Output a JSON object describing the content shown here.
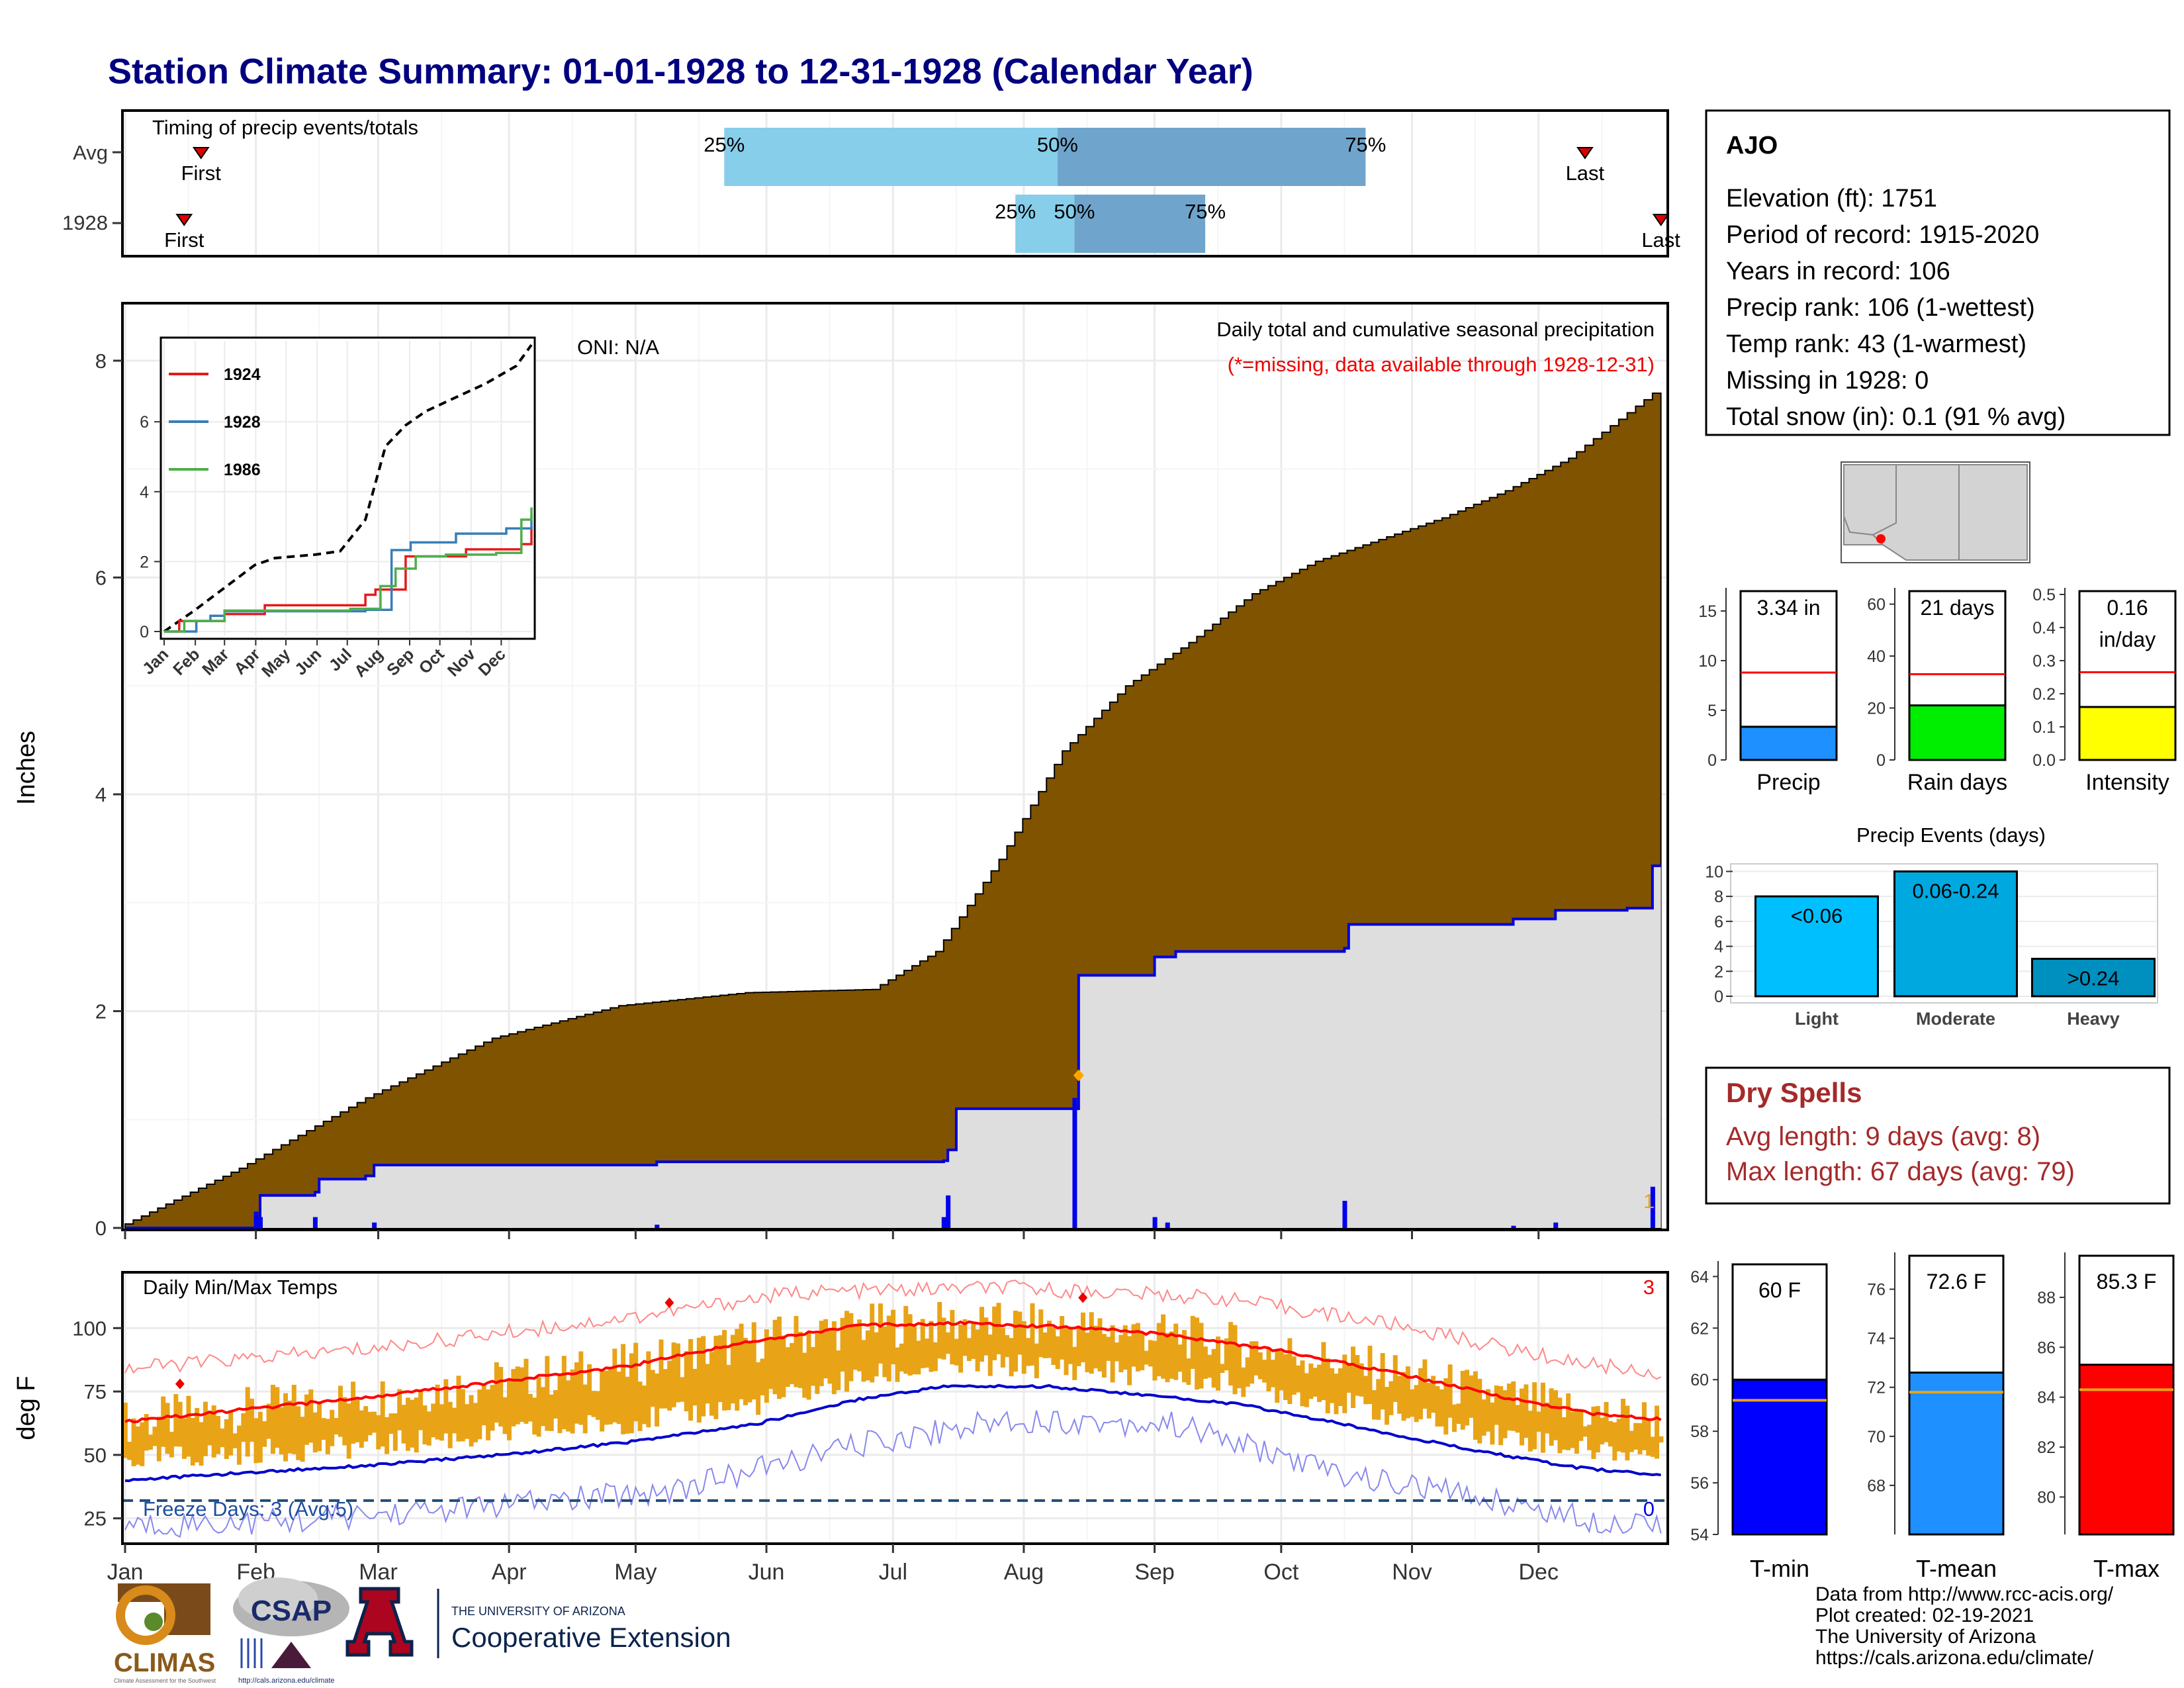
{
  "title": "Station Climate Summary: 01-01-1928 to 12-31-1928 (Calendar Year)",
  "months": [
    "Jan",
    "Feb",
    "Mar",
    "Apr",
    "May",
    "Jun",
    "Jul",
    "Aug",
    "Sep",
    "Oct",
    "Nov",
    "Dec"
  ],
  "timing": {
    "title": "Timing of precip events/totals",
    "rows": [
      "Avg",
      "1928"
    ],
    "first_label": "First",
    "last_label": "Last",
    "avg": {
      "first_doy": 19,
      "q25_doy": 143,
      "q50_doy": 222,
      "q75_doy": 295,
      "last_doy": 347
    },
    "year": {
      "first_doy": 15,
      "q25_doy": 212,
      "q50_doy": 226,
      "q75_doy": 257,
      "last_doy": 365
    },
    "labels": {
      "q25": "25%",
      "q50": "50%",
      "q75": "75%"
    },
    "colors": {
      "light": "#87ceeb",
      "dark": "#6fa5cc",
      "marker": "#dd0000"
    }
  },
  "precip_panel": {
    "ylabel": "Inches",
    "yticks": [
      "0",
      "2",
      "4",
      "6",
      "8"
    ],
    "title": "Daily total and cumulative seasonal precipitation",
    "missing_note": "(*=missing, data available through 1928-12-31)",
    "oni": "ONI: N/A",
    "missing_count": "1",
    "colors": {
      "avg_fill": "#805300",
      "year_fill": "#dedede",
      "year_line": "#0000dd",
      "daily_bar": "#0000ee"
    }
  },
  "inset": {
    "series": [
      "1924",
      "1928",
      "1986"
    ],
    "series_colors": [
      "#e41a1c",
      "#377eb8",
      "#4daf4a"
    ],
    "yticks": [
      "0",
      "2",
      "4",
      "6"
    ],
    "months": [
      "Jan",
      "Feb",
      "Mar",
      "Apr",
      "May",
      "Jun",
      "Jul",
      "Aug",
      "Sep",
      "Oct",
      "Nov",
      "Dec"
    ]
  },
  "temp_panel": {
    "ylabel": "deg F",
    "title": "Daily Min/Max Temps",
    "yticks": [
      "25",
      "50",
      "75",
      "100"
    ],
    "freeze_label": "Freeze Days: 3 (Avg:5)",
    "max_record_count": "3",
    "min_record_count": "0",
    "colors": {
      "range": "#e8a317",
      "max_avg": "#ff0000",
      "min_avg": "#0000cc",
      "max_record": "#ff8888",
      "min_record": "#8888ee",
      "freeze": "#1f4e79"
    }
  },
  "station": {
    "name": "AJO",
    "lines": [
      "Elevation (ft): 1751",
      "Period of record: 1915-2020",
      "Years in record: 106",
      "Precip rank: 106 (1-wettest)",
      "Temp rank: 43 (1-warmest)",
      "Missing in 1928: 0",
      "Total snow (in): 0.1 (91 % avg)"
    ]
  },
  "small_bars": {
    "precip": {
      "label": "Precip",
      "value_text": "3.34 in",
      "value": 3.34,
      "avg": 8.8,
      "max": 17,
      "yticks": [
        "0",
        "5",
        "10",
        "15"
      ],
      "color": "#1e90ff"
    },
    "rain_days": {
      "label": "Rain days",
      "value_text": "21 days",
      "value": 21,
      "avg": 33,
      "max": 65,
      "yticks": [
        "0",
        "20",
        "40",
        "60"
      ],
      "color": "#00ee00"
    },
    "intensity": {
      "label": "Intensity",
      "value_text": "0.16",
      "value_text2": "in/day",
      "value": 0.16,
      "avg": 0.265,
      "max": 0.51,
      "yticks": [
        "0.0",
        "0.1",
        "0.2",
        "0.3",
        "0.4",
        "0.5"
      ],
      "color": "#ffff00"
    }
  },
  "events": {
    "title": "Precip Events (days)",
    "categories": [
      "Light",
      "Moderate",
      "Heavy"
    ],
    "bar_labels": [
      "<0.06",
      "0.06-0.24",
      ">0.24"
    ],
    "values": [
      8,
      10,
      3
    ],
    "yticks": [
      "0",
      "2",
      "4",
      "6",
      "8",
      "10"
    ],
    "colors": [
      "#00bfff",
      "#00a8e0",
      "#0090c0"
    ]
  },
  "dry_spells": {
    "title": "Dry Spells",
    "avg_line": "Avg length: 9 days (avg: 8)",
    "max_line": "Max length: 67 days (avg: 79)",
    "color": "#a52a2a"
  },
  "temp_bars": {
    "tmin": {
      "label": "T-min",
      "value_text": "60 F",
      "value": 60,
      "avg": 59.2,
      "ymin": 54,
      "ymax": 64.6,
      "yticks": [
        "54",
        "56",
        "58",
        "60",
        "62",
        "64"
      ],
      "color": "#0000ff"
    },
    "tmean": {
      "label": "T-mean",
      "value_text": "72.6 F",
      "value": 72.6,
      "avg": 71.8,
      "ymin": 66,
      "ymax": 77.5,
      "yticks": [
        "68",
        "70",
        "72",
        "74",
        "76"
      ],
      "color": "#1e90ff"
    },
    "tmax": {
      "label": "T-max",
      "value_text": "85.3 F",
      "value": 85.3,
      "avg": 84.3,
      "ymin": 78.5,
      "ymax": 89.8,
      "yticks": [
        "80",
        "82",
        "84",
        "86",
        "88"
      ],
      "color": "#ff0000"
    }
  },
  "footer": {
    "credits": [
      "Data from http://www.rcc-acis.org/",
      "Plot created: 02-19-2021",
      "The University of Arizona",
      "https://cals.arizona.edu/climate/"
    ],
    "logo_climas": "CLIMAS",
    "logo_climas_sub": "Climate Assessment for the Southwest",
    "logo_csap": "CSAP",
    "logo_csap_url": "http://cals.arizona.edu/climate",
    "logo_ua_small": "THE UNIVERSITY OF ARIZONA",
    "logo_ua_big": "Cooperative Extension"
  },
  "chart_data": [
    {
      "type": "area",
      "title": "Daily total and cumulative seasonal precipitation",
      "ylabel": "Inches",
      "ylim": [
        0,
        8.5
      ],
      "x_unit": "day of year",
      "series": [
        {
          "name": "avg cumulative",
          "points": [
            [
              1,
              0
            ],
            [
              30,
              0.55
            ],
            [
              60,
              1.2
            ],
            [
              90,
              1.75
            ],
            [
              120,
              2.05
            ],
            [
              150,
              2.17
            ],
            [
              180,
              2.2
            ],
            [
              195,
              2.55
            ],
            [
              210,
              3.4
            ],
            [
              225,
              4.4
            ],
            [
              240,
              5.0
            ],
            [
              255,
              5.4
            ],
            [
              270,
              5.85
            ],
            [
              285,
              6.15
            ],
            [
              300,
              6.35
            ],
            [
              315,
              6.55
            ],
            [
              330,
              6.8
            ],
            [
              345,
              7.1
            ],
            [
              365,
              7.7
            ]
          ]
        },
        {
          "name": "1928 cumulative",
          "points": [
            [
              1,
              0
            ],
            [
              32,
              0.0
            ],
            [
              33,
              0.3
            ],
            [
              46,
              0.33
            ],
            [
              47,
              0.45
            ],
            [
              58,
              0.48
            ],
            [
              60,
              0.58
            ],
            [
              90,
              0.58
            ],
            [
              127,
              0.61
            ],
            [
              195,
              0.62
            ],
            [
              196,
              0.72
            ],
            [
              198,
              1.1
            ],
            [
              226,
              1.1
            ],
            [
              227,
              2.33
            ],
            [
              245,
              2.5
            ],
            [
              250,
              2.55
            ],
            [
              290,
              2.58
            ],
            [
              291,
              2.8
            ],
            [
              330,
              2.85
            ],
            [
              340,
              2.93
            ],
            [
              357,
              2.95
            ],
            [
              363,
              3.34
            ],
            [
              365,
              3.34
            ]
          ]
        },
        {
          "name": "1928 daily",
          "points": [
            [
              32,
              0.15
            ],
            [
              33,
              0.1
            ],
            [
              46,
              0.1
            ],
            [
              60,
              0.05
            ],
            [
              127,
              0.03
            ],
            [
              195,
              0.1
            ],
            [
              196,
              0.3
            ],
            [
              226,
              1.2
            ],
            [
              245,
              0.1
            ],
            [
              248,
              0.05
            ],
            [
              290,
              0.25
            ],
            [
              330,
              0.02
            ],
            [
              340,
              0.05
            ],
            [
              363,
              0.38
            ]
          ]
        }
      ]
    },
    {
      "type": "line",
      "title": "inset",
      "ylim": [
        0,
        8.2
      ],
      "series": [
        {
          "name": "avg",
          "points": [
            [
              0,
              0
            ],
            [
              30,
              0.6
            ],
            [
              60,
              1.25
            ],
            [
              90,
              1.9
            ],
            [
              110,
              2.1
            ],
            [
              150,
              2.2
            ],
            [
              175,
              2.3
            ],
            [
              200,
              3.2
            ],
            [
              220,
              5.3
            ],
            [
              240,
              5.9
            ],
            [
              260,
              6.3
            ],
            [
              290,
              6.7
            ],
            [
              320,
              7.1
            ],
            [
              350,
              7.6
            ],
            [
              365,
              8.2
            ]
          ]
        },
        {
          "name": "1924",
          "points": [
            [
              0,
              0
            ],
            [
              15,
              0.3
            ],
            [
              60,
              0.5
            ],
            [
              100,
              0.75
            ],
            [
              200,
              1.05
            ],
            [
              210,
              1.2
            ],
            [
              240,
              2.15
            ],
            [
              300,
              2.35
            ],
            [
              355,
              2.5
            ],
            [
              365,
              3.0
            ]
          ]
        },
        {
          "name": "1928",
          "points": [
            [
              0,
              0
            ],
            [
              32,
              0.3
            ],
            [
              46,
              0.45
            ],
            [
              60,
              0.58
            ],
            [
              200,
              0.62
            ],
            [
              226,
              2.33
            ],
            [
              245,
              2.55
            ],
            [
              290,
              2.8
            ],
            [
              340,
              2.95
            ],
            [
              365,
              3.34
            ]
          ]
        },
        {
          "name": "1986",
          "points": [
            [
              0,
              0
            ],
            [
              20,
              0.3
            ],
            [
              60,
              0.6
            ],
            [
              150,
              0.6
            ],
            [
              185,
              0.65
            ],
            [
              215,
              1.3
            ],
            [
              230,
              1.8
            ],
            [
              250,
              2.15
            ],
            [
              280,
              2.2
            ],
            [
              330,
              2.25
            ],
            [
              355,
              3.2
            ],
            [
              365,
              3.55
            ]
          ]
        }
      ]
    },
    {
      "type": "line",
      "title": "Daily Min/Max Temps",
      "ylim": [
        15,
        122
      ],
      "series": [
        {
          "name": "max avg",
          "points": [
            [
              1,
              63
            ],
            [
              30,
              68
            ],
            [
              60,
              73
            ],
            [
              90,
              79
            ],
            [
              120,
              85
            ],
            [
              150,
              95
            ],
            [
              175,
              101
            ],
            [
              200,
              102
            ],
            [
              230,
              100
            ],
            [
              250,
              97
            ],
            [
              275,
              91
            ],
            [
              300,
              83
            ],
            [
              330,
              72
            ],
            [
              350,
              66
            ],
            [
              365,
              64
            ]
          ]
        },
        {
          "name": "min avg",
          "points": [
            [
              1,
              40
            ],
            [
              30,
              43
            ],
            [
              60,
              46
            ],
            [
              90,
              50
            ],
            [
              120,
              55
            ],
            [
              150,
              62
            ],
            [
              175,
              72
            ],
            [
              195,
              77
            ],
            [
              220,
              77
            ],
            [
              240,
              74
            ],
            [
              265,
              70
            ],
            [
              290,
              62
            ],
            [
              320,
              52
            ],
            [
              345,
              45
            ],
            [
              365,
              42
            ]
          ]
        },
        {
          "name": "max record",
          "points": [
            [
              1,
              84
            ],
            [
              60,
              92
            ],
            [
              120,
              104
            ],
            [
              160,
              114
            ],
            [
              210,
              116
            ],
            [
              260,
              112
            ],
            [
              300,
              102
            ],
            [
              340,
              88
            ],
            [
              365,
              82
            ]
          ]
        },
        {
          "name": "min record",
          "points": [
            [
              1,
              22
            ],
            [
              40,
              24
            ],
            [
              90,
              30
            ],
            [
              130,
              36
            ],
            [
              175,
              54
            ],
            [
              210,
              64
            ],
            [
              250,
              62
            ],
            [
              290,
              42
            ],
            [
              320,
              34
            ],
            [
              350,
              24
            ],
            [
              365,
              24
            ]
          ]
        }
      ]
    },
    {
      "type": "bar",
      "title": "Precip Events (days)",
      "categories": [
        "Light",
        "Moderate",
        "Heavy"
      ],
      "values": [
        8,
        10,
        3
      ]
    }
  ]
}
